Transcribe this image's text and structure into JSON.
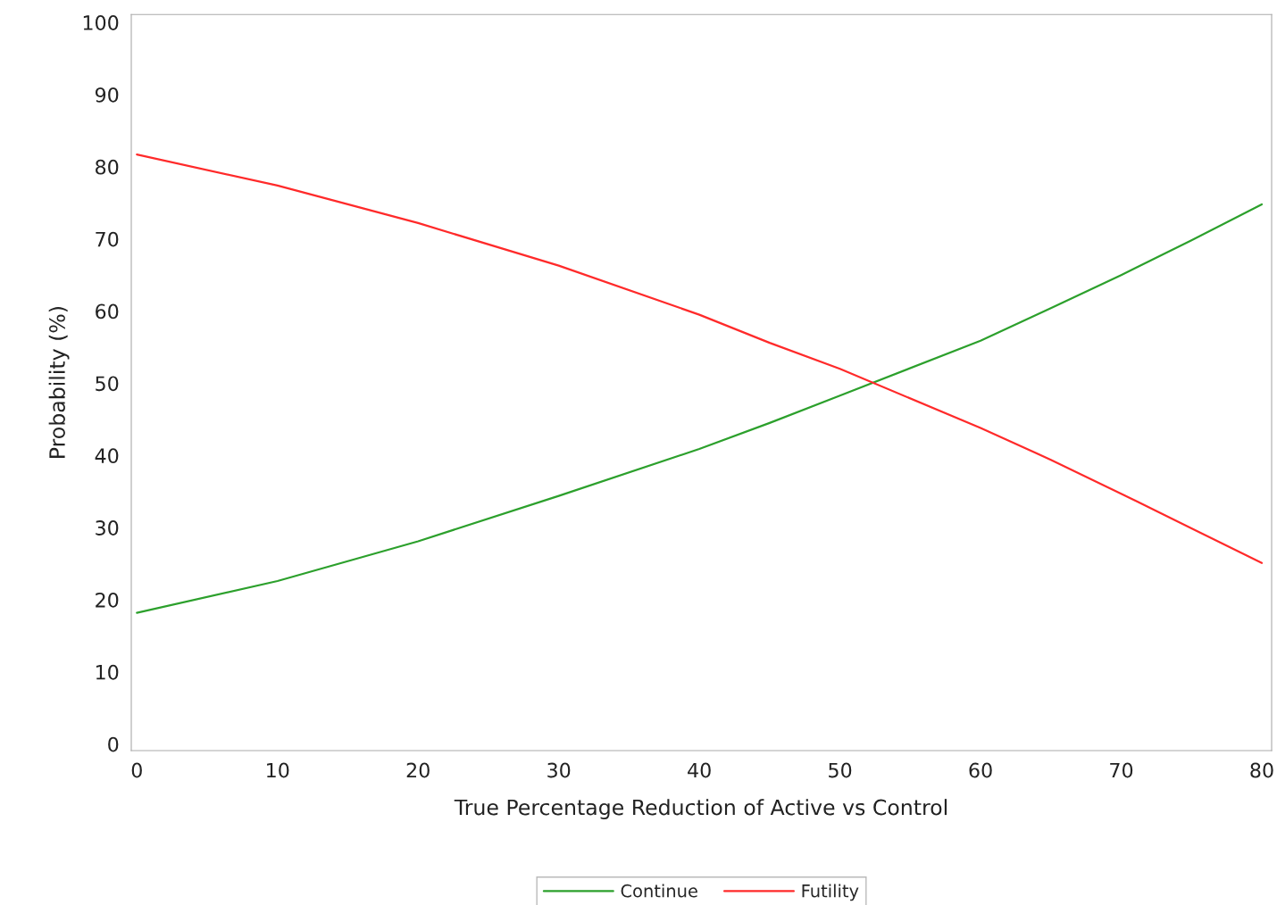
{
  "chart_data": {
    "type": "line",
    "xlabel": "True Percentage Reduction of Active vs Control",
    "ylabel": "Probability (%)",
    "x": [
      0,
      10,
      20,
      30,
      40,
      45,
      50,
      60,
      65,
      70,
      75,
      80
    ],
    "series": [
      {
        "name": "Continue",
        "color": "#2ca02c",
        "values": [
          18.2,
          22.6,
          28.1,
          34.4,
          40.9,
          44.5,
          48.3,
          55.9,
          60.4,
          65.0,
          69.8,
          74.8
        ]
      },
      {
        "name": "Futility",
        "color": "#ff2a2a",
        "values": [
          81.7,
          77.4,
          72.2,
          66.3,
          59.5,
          55.6,
          52.0,
          43.8,
          39.4,
          34.7,
          29.9,
          25.1
        ]
      }
    ],
    "xlim": [
      -0.4,
      80.7
    ],
    "ylim": [
      -0.9,
      101.1
    ],
    "xticks": [
      0,
      10,
      20,
      30,
      40,
      50,
      60,
      70,
      80
    ],
    "yticks": [
      0,
      10,
      20,
      30,
      40,
      50,
      60,
      70,
      80,
      90,
      100
    ],
    "grid": false,
    "legend": "bottom",
    "marker": "none",
    "line_style": "solid"
  }
}
